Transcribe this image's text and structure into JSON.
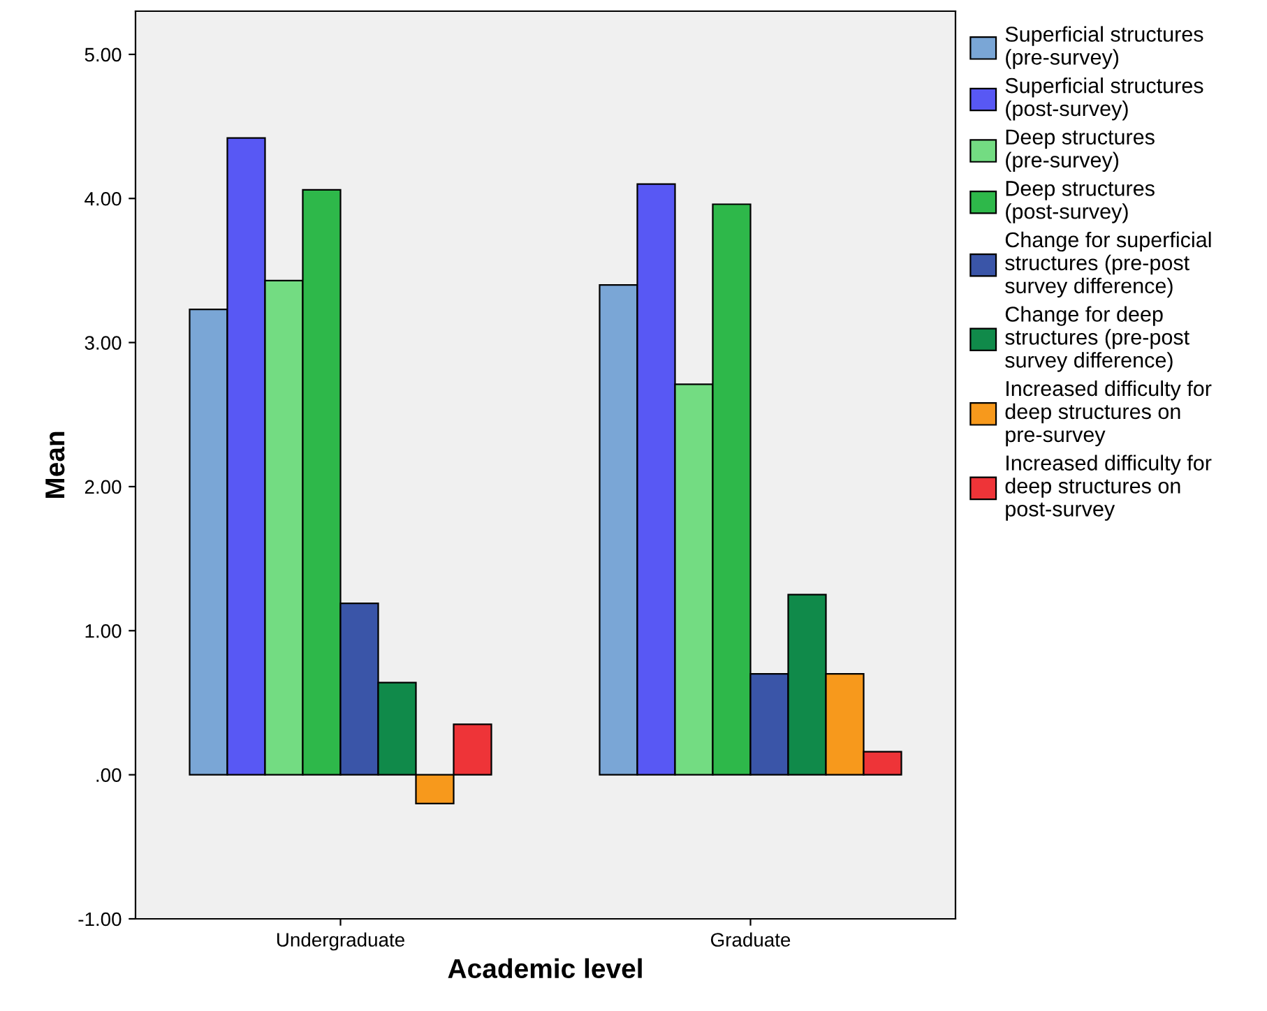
{
  "chart_data": {
    "type": "bar",
    "xlabel": "Academic level",
    "ylabel": "Mean",
    "categories": [
      "Undergraduate",
      "Graduate"
    ],
    "series": [
      {
        "name": "Superficial structures (pre-survey)",
        "color": "#7aa6d6",
        "values": [
          3.23,
          3.4
        ]
      },
      {
        "name": "Superficial structures (post-survey)",
        "color": "#5858f4",
        "values": [
          4.42,
          4.1
        ]
      },
      {
        "name": "Deep structures (pre-survey)",
        "color": "#73dc82",
        "values": [
          3.43,
          2.71
        ]
      },
      {
        "name": "Deep structures (post-survey)",
        "color": "#2eb84a",
        "values": [
          4.06,
          3.96
        ]
      },
      {
        "name": "Change for superficial structures (pre-post survey difference)",
        "color": "#3a55a8",
        "values": [
          1.19,
          0.7
        ]
      },
      {
        "name": "Change for deep structures (pre-post survey difference)",
        "color": "#108a4a",
        "values": [
          0.64,
          1.25
        ]
      },
      {
        "name": "Increased difficulty for deep structures on pre-survey",
        "color": "#f7991c",
        "values": [
          -0.2,
          0.7
        ]
      },
      {
        "name": "Increased difficulty for deep structures on post-survey",
        "color": "#ee3438",
        "values": [
          0.35,
          0.16
        ]
      }
    ],
    "ylim": [
      -1,
      5.3
    ],
    "yticks": [
      {
        "value": -1,
        "label": "-1.00"
      },
      {
        "value": 0,
        "label": ".00"
      },
      {
        "value": 1,
        "label": "1.00"
      },
      {
        "value": 2,
        "label": "2.00"
      },
      {
        "value": 3,
        "label": "3.00"
      },
      {
        "value": 4,
        "label": "4.00"
      },
      {
        "value": 5,
        "label": "5.00"
      }
    ],
    "grid": false,
    "legend": "right"
  }
}
